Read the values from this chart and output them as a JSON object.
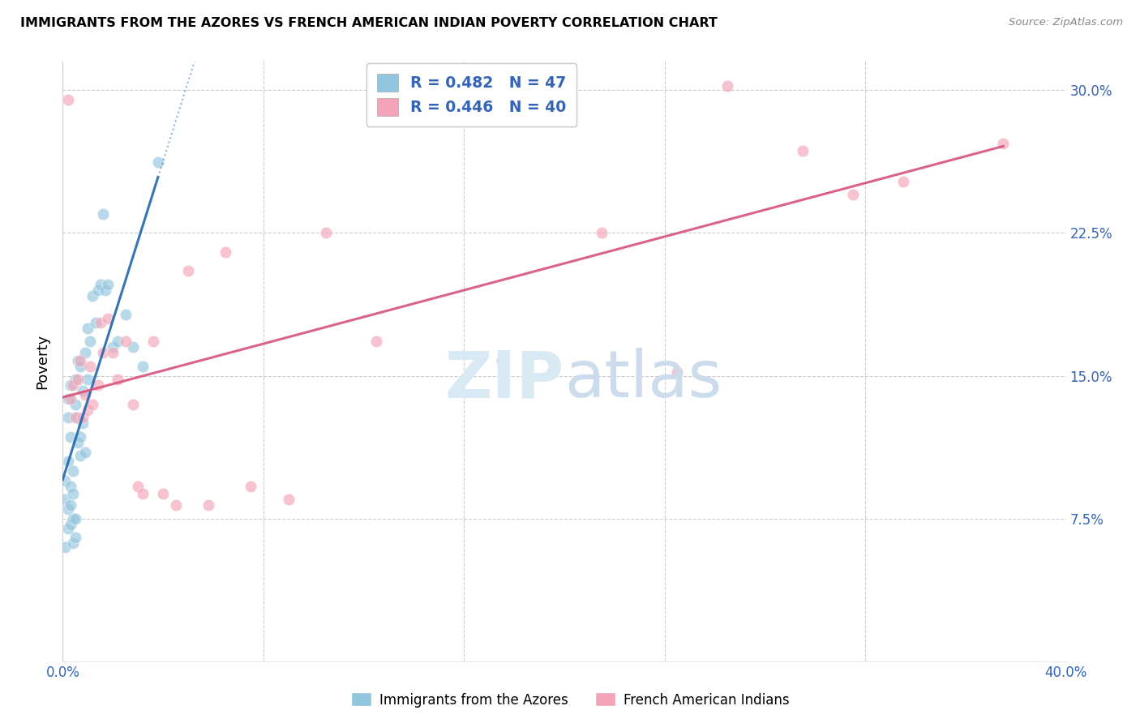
{
  "title": "IMMIGRANTS FROM THE AZORES VS FRENCH AMERICAN INDIAN POVERTY CORRELATION CHART",
  "source": "Source: ZipAtlas.com",
  "ylabel": "Poverty",
  "xlim": [
    0.0,
    0.4
  ],
  "ylim": [
    0.0,
    0.315
  ],
  "xtick_vals": [
    0.0,
    0.08,
    0.16,
    0.24,
    0.32,
    0.4
  ],
  "xtick_labels": [
    "0.0%",
    "",
    "",
    "",
    "",
    "40.0%"
  ],
  "ytick_vals": [
    0.075,
    0.15,
    0.225,
    0.3
  ],
  "ytick_labels": [
    "7.5%",
    "15.0%",
    "22.5%",
    "30.0%"
  ],
  "color_blue": "#92c5de",
  "color_pink": "#f4a4b8",
  "color_blue_line": "#2166ac",
  "color_pink_line": "#d6537a",
  "color_axis_text": "#3464b8",
  "legend_labels": [
    "R = 0.482   N = 47",
    "R = 0.446   N = 40"
  ],
  "bottom_legend": [
    "Immigrants from the Azores",
    "French American Indians"
  ],
  "blue_x": [
    0.001,
    0.001,
    0.001,
    0.002,
    0.002,
    0.002,
    0.002,
    0.002,
    0.003,
    0.003,
    0.003,
    0.003,
    0.003,
    0.004,
    0.004,
    0.004,
    0.004,
    0.005,
    0.005,
    0.005,
    0.005,
    0.006,
    0.006,
    0.006,
    0.007,
    0.007,
    0.007,
    0.008,
    0.008,
    0.009,
    0.009,
    0.01,
    0.01,
    0.011,
    0.012,
    0.013,
    0.014,
    0.015,
    0.016,
    0.017,
    0.018,
    0.02,
    0.022,
    0.025,
    0.028,
    0.032,
    0.038
  ],
  "blue_y": [
    0.085,
    0.095,
    0.06,
    0.07,
    0.08,
    0.105,
    0.128,
    0.138,
    0.072,
    0.082,
    0.092,
    0.118,
    0.145,
    0.062,
    0.075,
    0.088,
    0.1,
    0.135,
    0.148,
    0.065,
    0.075,
    0.115,
    0.128,
    0.158,
    0.108,
    0.118,
    0.155,
    0.125,
    0.142,
    0.11,
    0.162,
    0.148,
    0.175,
    0.168,
    0.192,
    0.178,
    0.195,
    0.198,
    0.235,
    0.195,
    0.198,
    0.165,
    0.168,
    0.182,
    0.165,
    0.155,
    0.262
  ],
  "pink_x": [
    0.002,
    0.003,
    0.004,
    0.005,
    0.006,
    0.007,
    0.008,
    0.009,
    0.01,
    0.011,
    0.012,
    0.014,
    0.015,
    0.016,
    0.018,
    0.02,
    0.022,
    0.025,
    0.028,
    0.03,
    0.032,
    0.036,
    0.04,
    0.045,
    0.05,
    0.058,
    0.065,
    0.075,
    0.09,
    0.105,
    0.125,
    0.155,
    0.175,
    0.215,
    0.245,
    0.265,
    0.295,
    0.315,
    0.335,
    0.375
  ],
  "pink_y": [
    0.295,
    0.138,
    0.145,
    0.128,
    0.148,
    0.158,
    0.128,
    0.14,
    0.132,
    0.155,
    0.135,
    0.145,
    0.178,
    0.162,
    0.18,
    0.162,
    0.148,
    0.168,
    0.135,
    0.092,
    0.088,
    0.168,
    0.088,
    0.082,
    0.205,
    0.082,
    0.215,
    0.092,
    0.085,
    0.225,
    0.168,
    0.285,
    0.158,
    0.225,
    0.152,
    0.302,
    0.268,
    0.245,
    0.252,
    0.272
  ]
}
